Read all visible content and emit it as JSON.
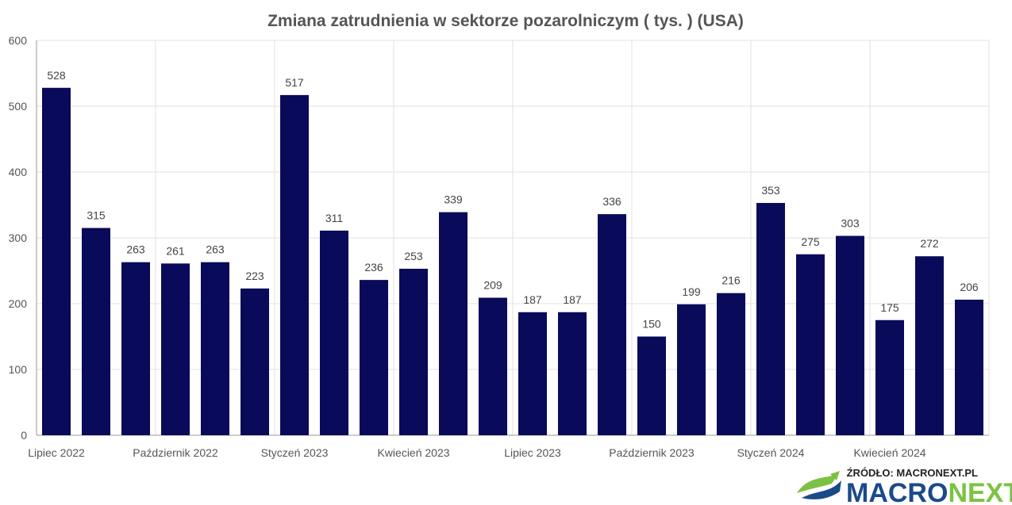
{
  "chart_data": {
    "type": "bar",
    "title": "Zmiana zatrudnienia w sektorze pozarolniczym ( tys. ) (USA)",
    "xlabel": "",
    "ylabel": "",
    "ylim": [
      0,
      600
    ],
    "yticks": [
      0,
      100,
      200,
      300,
      400,
      500,
      600
    ],
    "grid": true,
    "bar_color": "#0a0a5a",
    "categories": [
      "2022-07",
      "2022-08",
      "2022-09",
      "2022-10",
      "2022-11",
      "2022-12",
      "2023-01",
      "2023-02",
      "2023-03",
      "2023-04",
      "2023-05",
      "2023-06",
      "2023-07",
      "2023-08",
      "2023-09",
      "2023-10",
      "2023-11",
      "2023-12",
      "2024-01",
      "2024-02",
      "2024-03",
      "2024-04",
      "2024-05",
      "2024-06"
    ],
    "values": [
      528,
      315,
      263,
      261,
      263,
      223,
      517,
      311,
      236,
      253,
      339,
      209,
      187,
      187,
      336,
      150,
      199,
      216,
      353,
      275,
      303,
      175,
      272,
      206
    ],
    "xtick_labels": [
      {
        "index": 0,
        "label": "Lipiec 2022"
      },
      {
        "index": 3,
        "label": "Październik 2022"
      },
      {
        "index": 6,
        "label": "Styczeń 2023"
      },
      {
        "index": 9,
        "label": "Kwiecień 2023"
      },
      {
        "index": 12,
        "label": "Lipiec 2023"
      },
      {
        "index": 15,
        "label": "Październik 2023"
      },
      {
        "index": 18,
        "label": "Styczeń 2024"
      },
      {
        "index": 21,
        "label": "Kwiecień 2024"
      }
    ]
  },
  "source_text": "ŹRÓDŁO: MACRONEXT.PL",
  "brand": {
    "part1": "MACRO",
    "part2": "NEXT",
    "color1": "#1b4a8a",
    "color2": "#7cc242"
  }
}
